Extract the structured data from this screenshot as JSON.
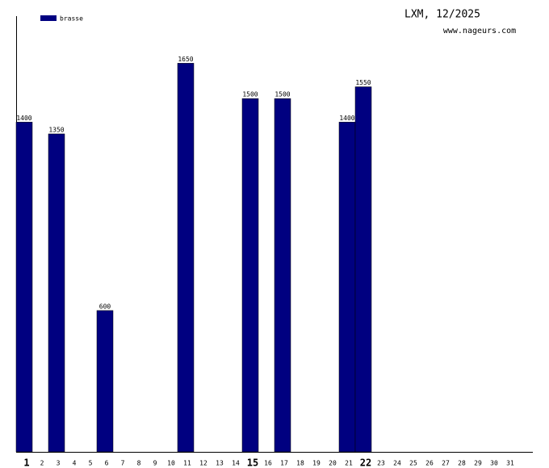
{
  "chart_data": {
    "type": "bar",
    "title": "LXM, 12/2025",
    "subtitle": "www.nageurs.com",
    "categories": [
      "1",
      "2",
      "3",
      "4",
      "5",
      "6",
      "7",
      "8",
      "9",
      "10",
      "11",
      "12",
      "13",
      "14",
      "15",
      "16",
      "17",
      "18",
      "19",
      "20",
      "21",
      "22",
      "23",
      "24",
      "25",
      "26",
      "27",
      "28",
      "29",
      "30",
      "31"
    ],
    "series": [
      {
        "name": "brasse",
        "color": "#000080",
        "values": [
          1400,
          null,
          1350,
          null,
          null,
          600,
          null,
          null,
          null,
          null,
          1650,
          null,
          null,
          null,
          1500,
          null,
          1500,
          null,
          null,
          null,
          1400,
          1550,
          null,
          null,
          null,
          null,
          null,
          null,
          null,
          null,
          null
        ]
      }
    ],
    "bold_categories": [
      0,
      14,
      21
    ],
    "ylim": [
      0,
      1850
    ],
    "legend": "top-left"
  }
}
